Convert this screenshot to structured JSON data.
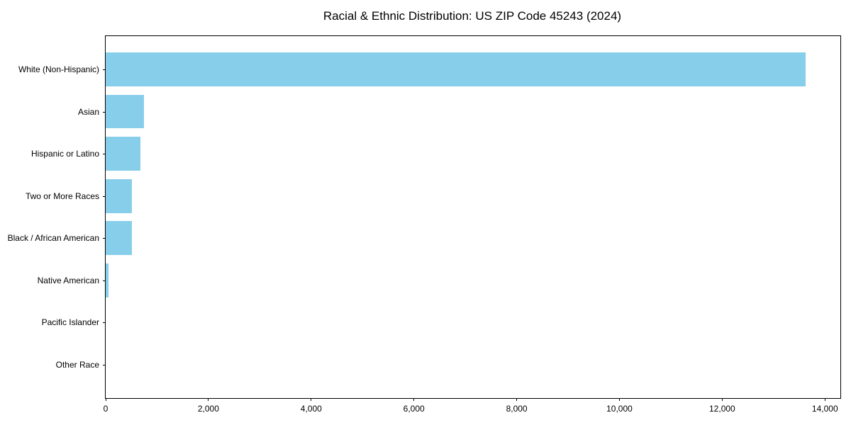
{
  "page": {
    "background": "#ffffff"
  },
  "chart_data": {
    "type": "bar",
    "orientation": "horizontal",
    "title": "Racial & Ethnic Distribution: US ZIP Code 45243 (2024)",
    "categories": [
      "White (Non-Hispanic)",
      "Asian",
      "Hispanic or Latino",
      "Two or More Races",
      "Black / African American",
      "Native American",
      "Pacific Islander",
      "Other Race"
    ],
    "values": [
      13620,
      745,
      675,
      515,
      510,
      60,
      0,
      0
    ],
    "xlabel": "",
    "ylabel": "",
    "xlim": [
      0,
      14300
    ],
    "xticks": [
      0,
      2000,
      4000,
      6000,
      8000,
      10000,
      12000,
      14000
    ],
    "xtick_labels": [
      "0",
      "2,000",
      "4,000",
      "6,000",
      "8,000",
      "10,000",
      "12,000",
      "14,000"
    ],
    "bar_color": "#87CEEB",
    "axis_color": "#000000",
    "text_color": "#000000",
    "plot_background": "#ffffff",
    "grid": false,
    "legend": "none",
    "bar_height_fraction": 0.8,
    "y_margin_fraction": 0.05
  }
}
